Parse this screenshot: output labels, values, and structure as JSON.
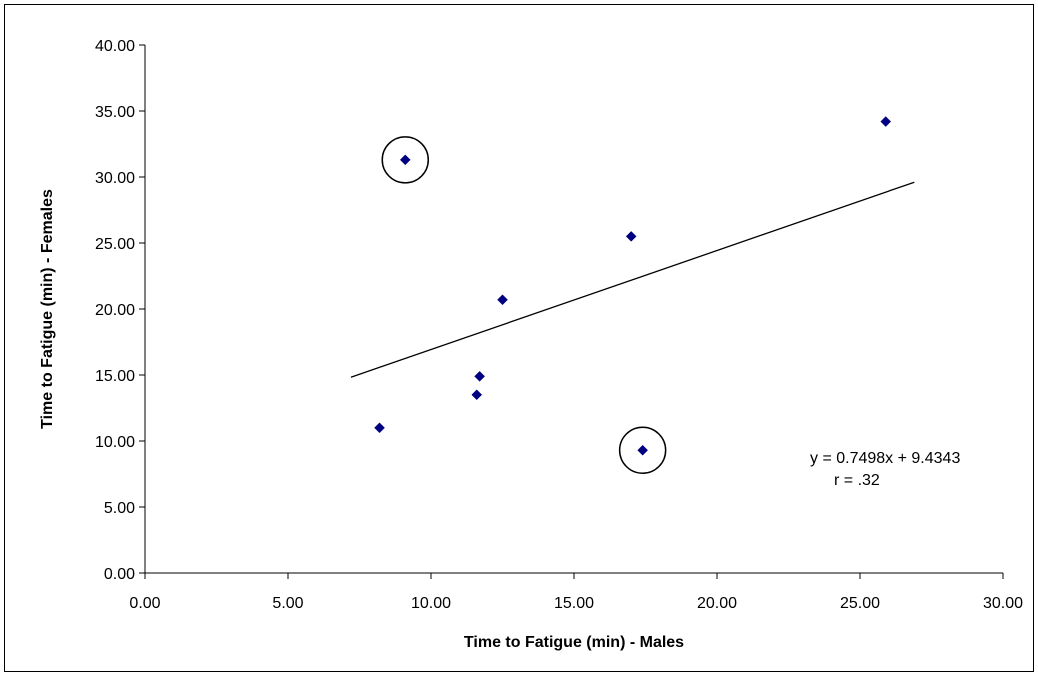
{
  "chart_data": {
    "type": "scatter",
    "xlabel": "Time to Fatigue (min) - Males",
    "ylabel": "Time to Fatigue (min) - Females",
    "xlim": [
      0,
      30
    ],
    "ylim": [
      0,
      40
    ],
    "x_ticks": [
      "0.00",
      "5.00",
      "10.00",
      "15.00",
      "20.00",
      "25.00",
      "30.00"
    ],
    "y_ticks": [
      "0.00",
      "5.00",
      "10.00",
      "15.00",
      "20.00",
      "25.00",
      "30.00",
      "35.00",
      "40.00"
    ],
    "grid": false,
    "marker_color": "#000080",
    "series": [
      {
        "points": [
          {
            "x": 8.2,
            "y": 11.0
          },
          {
            "x": 9.1,
            "y": 31.3
          },
          {
            "x": 11.6,
            "y": 13.5
          },
          {
            "x": 11.7,
            "y": 14.9
          },
          {
            "x": 12.5,
            "y": 20.7
          },
          {
            "x": 17.0,
            "y": 25.5
          },
          {
            "x": 17.4,
            "y": 9.3
          },
          {
            "x": 25.9,
            "y": 34.2
          }
        ]
      }
    ],
    "trendline": {
      "slope": 0.7498,
      "intercept": 9.4343,
      "x_range": [
        7.2,
        26.9
      ]
    },
    "circled_points": [
      {
        "x": 9.1,
        "y": 31.3
      },
      {
        "x": 17.4,
        "y": 9.3
      }
    ],
    "annotations": {
      "equation": "y = 0.7498x + 9.4343",
      "r_value": "r = .32"
    }
  }
}
